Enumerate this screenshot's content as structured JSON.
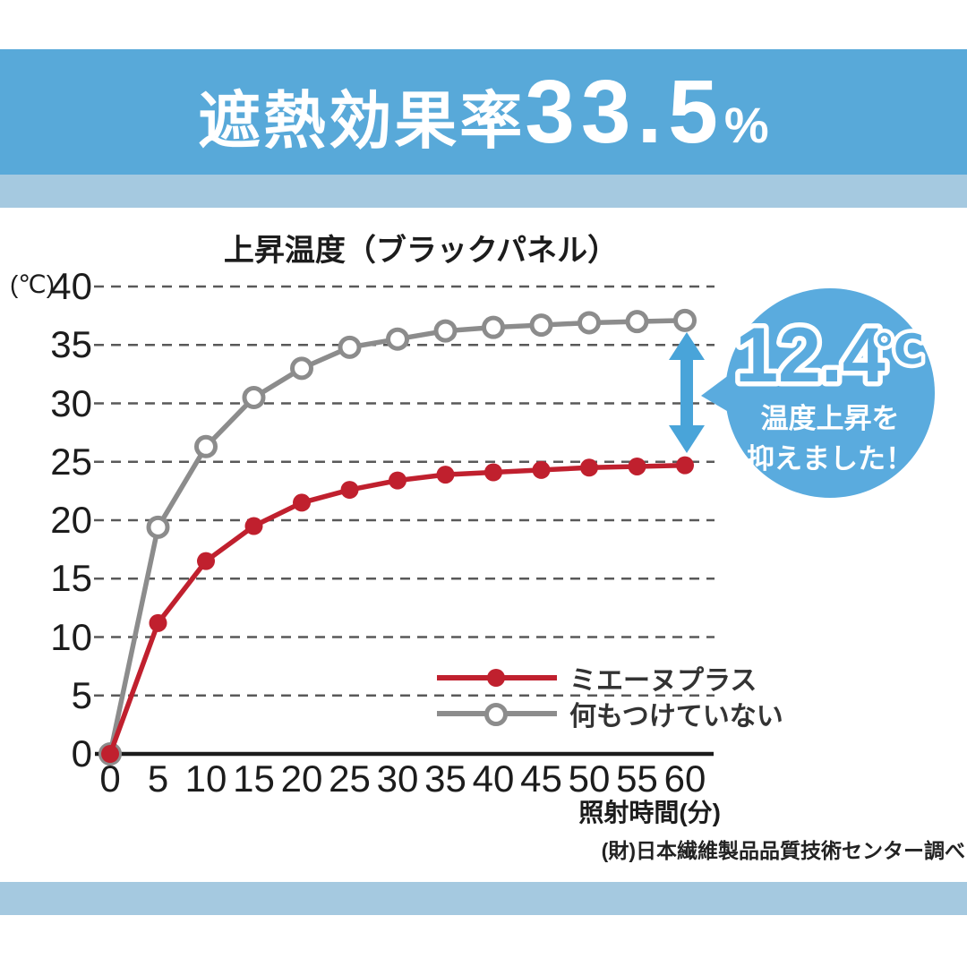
{
  "header": {
    "title_prefix": "遮熱効果率",
    "title_value": "33.5",
    "title_unit": "%"
  },
  "chart": {
    "title": "上昇温度（ブラックパネル）",
    "y_unit": "(℃)",
    "x_axis_label": "照射時間(分)",
    "source": "(財)日本繊維製品品質技術センター調べ"
  },
  "chart_data": {
    "type": "line",
    "title": "上昇温度（ブラックパネル）",
    "xlabel": "照射時間(分)",
    "ylabel": "(℃)",
    "x": [
      0,
      5,
      10,
      15,
      20,
      25,
      30,
      35,
      40,
      45,
      50,
      55,
      60
    ],
    "series": [
      {
        "name": "ミエーヌプラス",
        "color": "#c0202e",
        "marker": "filled-circle",
        "values": [
          0,
          11.2,
          16.5,
          19.5,
          21.5,
          22.6,
          23.4,
          23.9,
          24.1,
          24.3,
          24.5,
          24.6,
          24.7
        ]
      },
      {
        "name": "何もつけていない",
        "color": "#8c8c8c",
        "marker": "open-circle",
        "values": [
          0,
          19.4,
          26.3,
          30.5,
          33.0,
          34.8,
          35.5,
          36.2,
          36.5,
          36.7,
          36.9,
          37.0,
          37.1
        ]
      }
    ],
    "ylim": [
      0,
      40
    ],
    "y_ticks": [
      0,
      5,
      10,
      15,
      20,
      25,
      30,
      35,
      40
    ],
    "x_ticks": [
      0,
      5,
      10,
      15,
      20,
      25,
      30,
      35,
      40,
      45,
      50,
      55,
      60
    ],
    "grid": "dashed-horizontal",
    "legend_position": "inside-lower-right",
    "annotation_delta_at_x60": 12.4
  },
  "callout": {
    "value": "12.4",
    "unit": "℃",
    "line1": "温度上昇を",
    "line2": "抑えました！"
  },
  "colors": {
    "band_blue": "#58a9d9",
    "stripe_blue": "#a5c9e0",
    "bubble_blue": "#5aabde",
    "arrow_blue": "#49a4d9",
    "series_red": "#c0202e",
    "series_gray": "#8c8c8c",
    "grid_gray": "#595959",
    "axis_black": "#1b1b1b"
  }
}
